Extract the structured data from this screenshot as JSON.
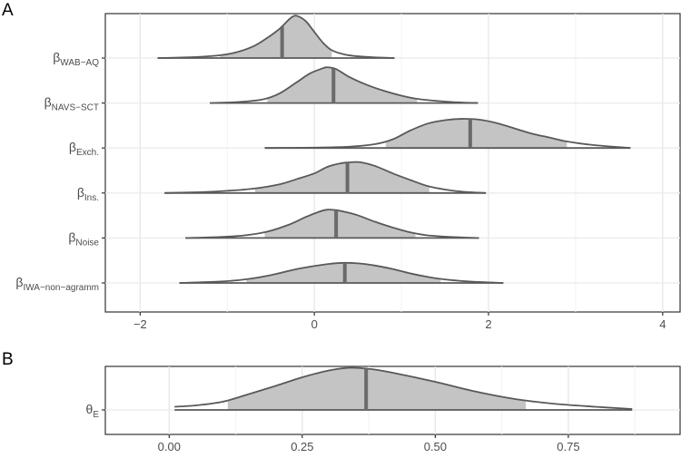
{
  "chart_data": [
    {
      "panel_label": "A",
      "type": "ridgeline",
      "xlim": [
        -2.4,
        4.2
      ],
      "xticks": [
        -2,
        0,
        2,
        4
      ],
      "xtick_labels": [
        "−2",
        "0",
        "2",
        "4"
      ],
      "grid": true,
      "fill_color": "#c4c4c4",
      "line_color": "#595959",
      "series": [
        {
          "name": "β",
          "sub": "WAB−AQ",
          "range": [
            -1.8,
            0.92
          ],
          "inner": [
            -1.08,
            0.2
          ],
          "median": -0.37,
          "density": [
            [
              -1.8,
              0
            ],
            [
              -1.4,
              0.02
            ],
            [
              -1.1,
              0.06
            ],
            [
              -0.9,
              0.13
            ],
            [
              -0.7,
              0.27
            ],
            [
              -0.55,
              0.45
            ],
            [
              -0.4,
              0.67
            ],
            [
              -0.3,
              0.87
            ],
            [
              -0.25,
              0.95
            ],
            [
              -0.2,
              0.97
            ],
            [
              -0.1,
              0.85
            ],
            [
              0.0,
              0.6
            ],
            [
              0.1,
              0.35
            ],
            [
              0.2,
              0.18
            ],
            [
              0.35,
              0.08
            ],
            [
              0.5,
              0.04
            ],
            [
              0.7,
              0.015
            ],
            [
              0.92,
              0
            ]
          ]
        },
        {
          "name": "β",
          "sub": "NAVS−SCT",
          "range": [
            -1.2,
            1.88
          ],
          "inner": [
            -0.54,
            1.18
          ],
          "median": 0.22,
          "density": [
            [
              -1.2,
              0
            ],
            [
              -0.9,
              0.02
            ],
            [
              -0.6,
              0.08
            ],
            [
              -0.4,
              0.22
            ],
            [
              -0.2,
              0.48
            ],
            [
              -0.05,
              0.68
            ],
            [
              0.1,
              0.8
            ],
            [
              0.15,
              0.82
            ],
            [
              0.25,
              0.78
            ],
            [
              0.4,
              0.6
            ],
            [
              0.6,
              0.42
            ],
            [
              0.8,
              0.28
            ],
            [
              1.0,
              0.17
            ],
            [
              1.2,
              0.09
            ],
            [
              1.4,
              0.05
            ],
            [
              1.6,
              0.02
            ],
            [
              1.88,
              0
            ]
          ]
        },
        {
          "name": "β",
          "sub": "Exch.",
          "range": [
            -0.57,
            3.63
          ],
          "inner": [
            0.82,
            2.9
          ],
          "median": 1.79,
          "density": [
            [
              -0.57,
              0
            ],
            [
              0.0,
              0.01
            ],
            [
              0.4,
              0.03
            ],
            [
              0.7,
              0.09
            ],
            [
              0.9,
              0.2
            ],
            [
              1.1,
              0.4
            ],
            [
              1.3,
              0.56
            ],
            [
              1.5,
              0.64
            ],
            [
              1.7,
              0.67
            ],
            [
              1.9,
              0.65
            ],
            [
              2.1,
              0.57
            ],
            [
              2.3,
              0.45
            ],
            [
              2.5,
              0.33
            ],
            [
              2.7,
              0.24
            ],
            [
              2.9,
              0.15
            ],
            [
              3.2,
              0.07
            ],
            [
              3.63,
              0
            ]
          ]
        },
        {
          "name": "β",
          "sub": "Ins.",
          "range": [
            -1.72,
            1.97
          ],
          "inner": [
            -0.68,
            1.32
          ],
          "median": 0.38,
          "density": [
            [
              -1.72,
              0
            ],
            [
              -1.3,
              0.02
            ],
            [
              -1.0,
              0.05
            ],
            [
              -0.7,
              0.1
            ],
            [
              -0.4,
              0.2
            ],
            [
              -0.2,
              0.32
            ],
            [
              0.0,
              0.45
            ],
            [
              0.15,
              0.6
            ],
            [
              0.3,
              0.68
            ],
            [
              0.45,
              0.71
            ],
            [
              0.55,
              0.7
            ],
            [
              0.7,
              0.62
            ],
            [
              0.9,
              0.45
            ],
            [
              1.1,
              0.3
            ],
            [
              1.3,
              0.16
            ],
            [
              1.5,
              0.08
            ],
            [
              1.7,
              0.03
            ],
            [
              1.97,
              0
            ]
          ]
        },
        {
          "name": "β",
          "sub": "Noise",
          "range": [
            -1.48,
            1.89
          ],
          "inner": [
            -0.57,
            1.16
          ],
          "median": 0.25,
          "density": [
            [
              -1.48,
              0
            ],
            [
              -1.1,
              0.02
            ],
            [
              -0.8,
              0.06
            ],
            [
              -0.55,
              0.14
            ],
            [
              -0.3,
              0.3
            ],
            [
              -0.1,
              0.48
            ],
            [
              0.05,
              0.6
            ],
            [
              0.15,
              0.65
            ],
            [
              0.25,
              0.64
            ],
            [
              0.35,
              0.6
            ],
            [
              0.5,
              0.52
            ],
            [
              0.7,
              0.37
            ],
            [
              0.9,
              0.24
            ],
            [
              1.1,
              0.13
            ],
            [
              1.3,
              0.06
            ],
            [
              1.6,
              0.02
            ],
            [
              1.89,
              0
            ]
          ]
        },
        {
          "name": "β",
          "sub": "IWA−non−agramm",
          "range": [
            -1.55,
            2.17
          ],
          "inner": [
            -0.78,
            1.45
          ],
          "median": 0.35,
          "density": [
            [
              -1.55,
              0
            ],
            [
              -1.1,
              0.03
            ],
            [
              -0.8,
              0.08
            ],
            [
              -0.5,
              0.18
            ],
            [
              -0.2,
              0.32
            ],
            [
              0.1,
              0.42
            ],
            [
              0.3,
              0.46
            ],
            [
              0.5,
              0.45
            ],
            [
              0.7,
              0.4
            ],
            [
              0.9,
              0.32
            ],
            [
              1.1,
              0.22
            ],
            [
              1.3,
              0.14
            ],
            [
              1.5,
              0.08
            ],
            [
              1.8,
              0.03
            ],
            [
              2.17,
              0
            ]
          ]
        }
      ]
    },
    {
      "panel_label": "B",
      "type": "ridgeline",
      "xlim": [
        -0.12,
        0.96
      ],
      "xticks": [
        0.0,
        0.25,
        0.5,
        0.75
      ],
      "xtick_labels": [
        "0.00",
        "0.25",
        "0.50",
        "0.75"
      ],
      "grid": true,
      "fill_color": "#c4c4c4",
      "line_color": "#595959",
      "series": [
        {
          "name": "θ",
          "sub": "E",
          "range": [
            0.01,
            0.87
          ],
          "inner": [
            0.11,
            0.67
          ],
          "median": 0.37,
          "density": [
            [
              0.01,
              0.07
            ],
            [
              0.05,
              0.1
            ],
            [
              0.1,
              0.18
            ],
            [
              0.15,
              0.35
            ],
            [
              0.2,
              0.53
            ],
            [
              0.25,
              0.72
            ],
            [
              0.3,
              0.87
            ],
            [
              0.34,
              0.93
            ],
            [
              0.38,
              0.9
            ],
            [
              0.42,
              0.82
            ],
            [
              0.5,
              0.62
            ],
            [
              0.57,
              0.42
            ],
            [
              0.65,
              0.24
            ],
            [
              0.72,
              0.14
            ],
            [
              0.8,
              0.07
            ],
            [
              0.87,
              0.02
            ]
          ]
        }
      ]
    }
  ]
}
